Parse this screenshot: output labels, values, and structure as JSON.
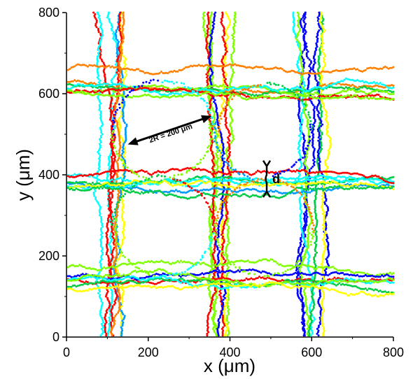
{
  "chart_data": {
    "type": "scatter",
    "title": "",
    "xlabel": "x (μm)",
    "ylabel": "y (μm)",
    "xlim": [
      0,
      800
    ],
    "ylim": [
      0,
      800
    ],
    "xticks": [
      "0",
      "200",
      "400",
      "600",
      "800"
    ],
    "yticks": [
      "0",
      "200",
      "400",
      "600",
      "800"
    ],
    "xtick_values": [
      0,
      200,
      400,
      600,
      800
    ],
    "ytick_values": [
      0,
      200,
      400,
      600,
      800
    ],
    "grid": false,
    "legend": "none",
    "track_colors": [
      "#ff0000",
      "#ff8000",
      "#ffff00",
      "#80ff00",
      "#00cc44",
      "#00ffff",
      "#0099ff",
      "#0000ff"
    ],
    "structure": {
      "vertical_channels_x": [
        110,
        370,
        600
      ],
      "horizontal_channels_y": [
        150,
        390,
        630
      ],
      "channel_wobble": [
        -30,
        30
      ]
    },
    "annotations": {
      "radius_label": "2R = 200 μm",
      "radius_arrow": {
        "x1": 150,
        "y1": 475,
        "x2": 355,
        "y2": 545
      },
      "gap_label": "d",
      "gap_marker": {
        "x": 490,
        "y1": 345,
        "y2": 435
      }
    }
  }
}
